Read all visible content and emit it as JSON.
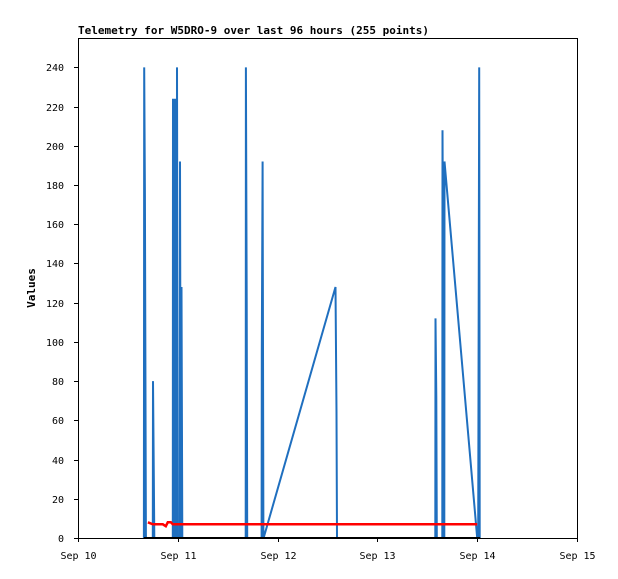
{
  "chart_data": {
    "type": "line",
    "title": "Telemetry for W5DRO-9 over last 96 hours (255 points)",
    "xlabel": "",
    "ylabel": "Values",
    "ylim": [
      0,
      255
    ],
    "xlim": [
      0,
      5
    ],
    "x_ticks": [
      {
        "x": 0,
        "label": "Sep 10"
      },
      {
        "x": 1,
        "label": "Sep 11"
      },
      {
        "x": 2,
        "label": "Sep 12"
      },
      {
        "x": 3,
        "label": "Sep 13"
      },
      {
        "x": 4,
        "label": "Sep 14"
      },
      {
        "x": 5,
        "label": "Sep 15"
      }
    ],
    "y_ticks": [
      0,
      20,
      40,
      60,
      80,
      100,
      120,
      140,
      160,
      180,
      200,
      220,
      240
    ],
    "grid": false,
    "series": [
      {
        "color": "#1f6fbf",
        "points": [
          [
            0.66,
            0
          ],
          [
            0.663,
            240
          ],
          [
            0.67,
            176
          ],
          [
            0.68,
            0
          ],
          [
            0.75,
            0
          ],
          [
            0.752,
            80
          ],
          [
            0.76,
            32
          ],
          [
            0.765,
            0
          ],
          [
            0.95,
            0
          ],
          [
            0.952,
            224
          ],
          [
            0.96,
            120
          ],
          [
            0.965,
            0
          ],
          [
            0.97,
            0
          ],
          [
            0.972,
            224
          ],
          [
            0.98,
            64
          ],
          [
            0.985,
            0
          ],
          [
            0.99,
            0
          ],
          [
            0.992,
            240
          ],
          [
            1.0,
            0
          ],
          [
            1.02,
            0
          ],
          [
            1.022,
            192
          ],
          [
            1.03,
            0
          ],
          [
            1.035,
            0
          ],
          [
            1.037,
            128
          ],
          [
            1.045,
            0
          ],
          [
            1.68,
            0
          ],
          [
            1.682,
            240
          ],
          [
            1.69,
            120
          ],
          [
            1.695,
            0
          ],
          [
            1.84,
            0
          ],
          [
            1.842,
            96
          ],
          [
            1.85,
            192
          ],
          [
            1.858,
            0
          ],
          [
            1.86,
            0
          ],
          [
            2.58,
            128
          ],
          [
            2.59,
            64
          ],
          [
            2.595,
            0
          ],
          [
            3.58,
            0
          ],
          [
            3.582,
            112
          ],
          [
            3.59,
            72
          ],
          [
            3.595,
            0
          ],
          [
            3.65,
            0
          ],
          [
            3.652,
            208
          ],
          [
            3.66,
            120
          ],
          [
            3.665,
            0
          ],
          [
            3.67,
            0
          ],
          [
            3.672,
            192
          ],
          [
            4.0,
            0
          ],
          [
            4.01,
            0
          ],
          [
            4.015,
            120
          ],
          [
            4.02,
            240
          ],
          [
            4.025,
            0
          ]
        ]
      },
      {
        "color": "#ff0000",
        "points": [
          [
            0.7,
            8
          ],
          [
            0.75,
            7
          ],
          [
            0.78,
            7
          ],
          [
            0.85,
            7
          ],
          [
            0.88,
            6
          ],
          [
            0.9,
            8
          ],
          [
            0.93,
            8
          ],
          [
            0.95,
            7
          ],
          [
            1.2,
            7
          ],
          [
            1.7,
            7
          ],
          [
            2.2,
            7
          ],
          [
            2.7,
            7
          ],
          [
            3.2,
            7
          ],
          [
            3.7,
            7
          ],
          [
            4.0,
            7
          ]
        ]
      },
      {
        "color": "#000000",
        "points": [
          [
            0.66,
            0
          ],
          [
            1.5,
            0
          ],
          [
            2.0,
            0
          ],
          [
            3.0,
            0
          ],
          [
            4.03,
            0
          ]
        ]
      }
    ]
  }
}
